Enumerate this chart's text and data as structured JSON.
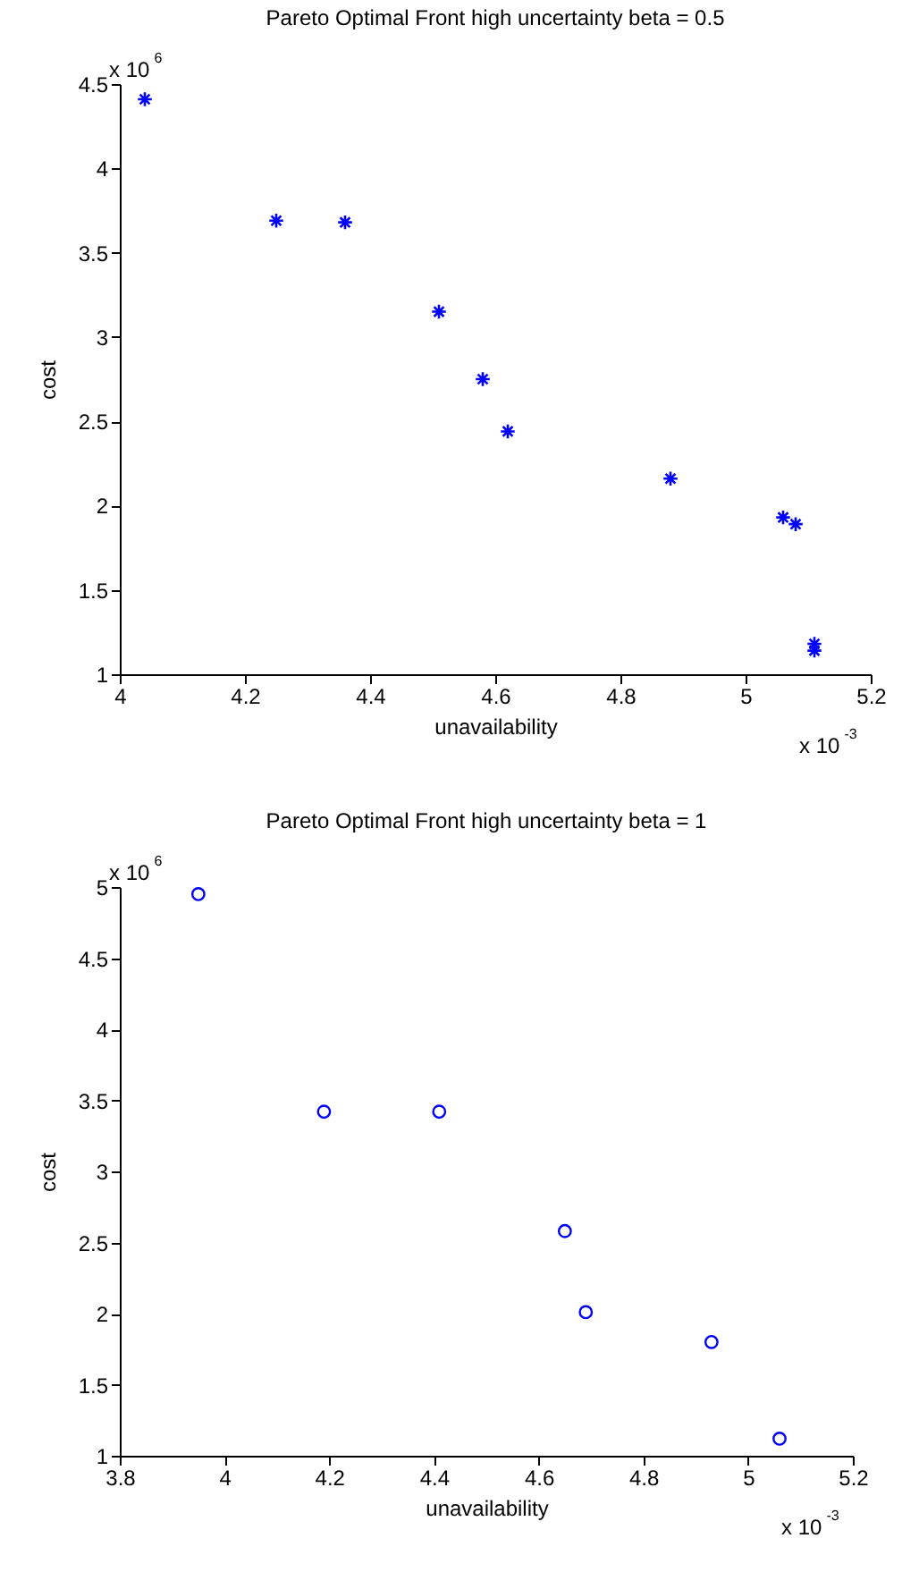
{
  "chart_data": [
    {
      "type": "scatter",
      "title": "Pareto Optimal Front high uncertainty beta = 0.5",
      "xlabel": "unavailability",
      "ylabel": "cost",
      "marker": "cross",
      "grid": false,
      "x": [
        4.04,
        4.25,
        4.36,
        4.51,
        4.58,
        4.62,
        4.88,
        5.06,
        5.08,
        5.11,
        5.11
      ],
      "series": [
        {
          "color": "#0000ff",
          "values": [
            4.41,
            3.69,
            3.68,
            3.15,
            2.75,
            2.44,
            2.16,
            1.93,
            1.89,
            1.18,
            1.14
          ]
        }
      ],
      "xlim": [
        4,
        5.2
      ],
      "xticks": [
        4,
        4.2,
        4.4,
        4.6,
        4.8,
        5,
        5.2
      ],
      "ylim": [
        1,
        4.5
      ],
      "yticks": [
        1,
        1.5,
        2,
        2.5,
        3,
        3.5,
        4,
        4.5
      ],
      "annotations": [
        "x 10$^{6}$",
        "x 10$^{-3}$"
      ]
    },
    {
      "type": "scatter",
      "title": "Pareto Optimal Front high uncertainty beta = 1",
      "xlabel": "unavailability",
      "ylabel": "cost",
      "marker": "circle",
      "grid": false,
      "x": [
        3.95,
        4.19,
        4.41,
        4.65,
        4.69,
        4.93,
        5.06
      ],
      "series": [
        {
          "color": "#0000ff",
          "values": [
            4.95,
            3.42,
            3.42,
            2.58,
            2.01,
            1.8,
            1.12
          ]
        }
      ],
      "xlim": [
        3.8,
        5.2
      ],
      "xticks": [
        3.8,
        4,
        4.2,
        4.4,
        4.6,
        4.8,
        5,
        5.2
      ],
      "ylim": [
        1,
        5
      ],
      "yticks": [
        1,
        1.5,
        2,
        2.5,
        3,
        3.5,
        4,
        4.5,
        5
      ],
      "annotations": [
        "x 10$^{6}$",
        "x 10$^{-3}$"
      ]
    }
  ]
}
